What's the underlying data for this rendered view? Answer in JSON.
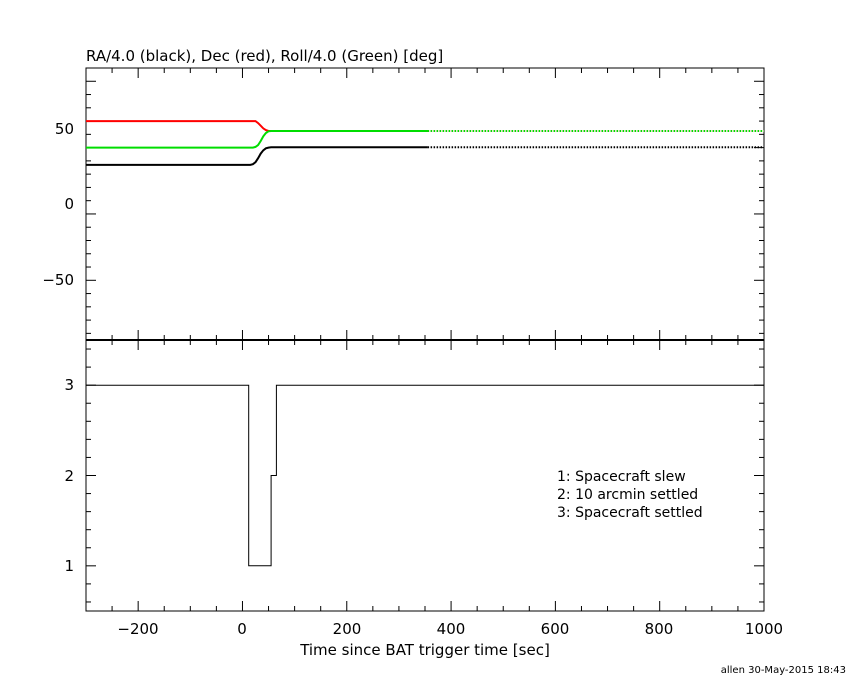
{
  "footer": "allen 30-May-2015 18:43",
  "chart_data": [
    {
      "type": "line",
      "title": "RA/4.0 (black), Dec (red), Roll/4.0 (Green) [deg]",
      "xlabel": "",
      "ylabel": "",
      "xlim": [
        -300,
        1000
      ],
      "ylim": [
        -95,
        110
      ],
      "yticks": [
        {
          "value": 50,
          "label": "50"
        },
        {
          "value": 0,
          "label": "0"
        },
        {
          "value": -50,
          "label": "−50"
        }
      ],
      "series": [
        {
          "color": "#ff0000",
          "dotted_after": 355,
          "x": [
            -300,
            25,
            30,
            35,
            40,
            45,
            50,
            1000
          ],
          "y": [
            70,
            70,
            68.5,
            66.5,
            64.5,
            63.2,
            62.5,
            62.5
          ]
        },
        {
          "color": "#00dd00",
          "dotted_after": 355,
          "x": [
            -300,
            20,
            25,
            30,
            35,
            40,
            45,
            50,
            55,
            1000
          ],
          "y": [
            50,
            50,
            50.5,
            52,
            55,
            58.5,
            61,
            62.3,
            62.5,
            62.5
          ]
        },
        {
          "color": "#000000",
          "dotted_after": 355,
          "x": [
            -300,
            15,
            20,
            25,
            30,
            35,
            40,
            45,
            50,
            55,
            60,
            1000
          ],
          "y": [
            37,
            37,
            37.5,
            39,
            42,
            45.5,
            48,
            49.5,
            50,
            50.2,
            50.2,
            50.2
          ]
        }
      ]
    },
    {
      "type": "line",
      "title": "",
      "xlabel": "Time since BAT trigger time [sec]",
      "ylabel": "",
      "xlim": [
        -300,
        1000
      ],
      "ylim": [
        0.5,
        3.5
      ],
      "xticks": [
        {
          "value": -200,
          "label": "−200"
        },
        {
          "value": 0,
          "label": "0"
        },
        {
          "value": 200,
          "label": "200"
        },
        {
          "value": 400,
          "label": "400"
        },
        {
          "value": 600,
          "label": "600"
        },
        {
          "value": 800,
          "label": "800"
        },
        {
          "value": 1000,
          "label": "1000"
        }
      ],
      "yticks": [
        {
          "value": 3,
          "label": "3"
        },
        {
          "value": 2,
          "label": "2"
        },
        {
          "value": 1,
          "label": "1"
        }
      ],
      "legend": [
        "1: Spacecraft slew",
        "2: 10 arcmin settled",
        "3: Spacecraft settled"
      ],
      "legend_position": "center-right",
      "series": [
        {
          "color": "#000000",
          "step": true,
          "x": [
            -300,
            12,
            12,
            55,
            55,
            65,
            65,
            1000
          ],
          "y": [
            3,
            3,
            1,
            1,
            2,
            2,
            3,
            3
          ]
        }
      ]
    }
  ]
}
